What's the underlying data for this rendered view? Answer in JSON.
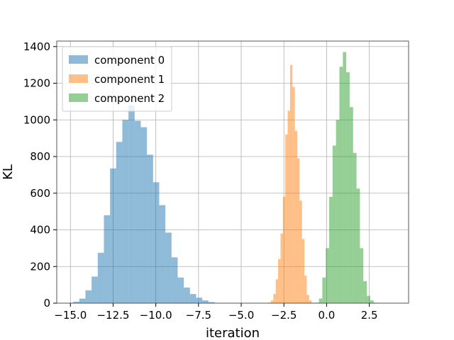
{
  "chart_data": {
    "type": "bar",
    "chart_kind": "histogram",
    "xlabel": "iteration",
    "ylabel": "KL",
    "xlim": [
      -15.8,
      4.8
    ],
    "ylim": [
      0,
      1430
    ],
    "x_ticks": [
      {
        "value": -15.0,
        "label": "−15.0"
      },
      {
        "value": -12.5,
        "label": "−12.5"
      },
      {
        "value": -10.0,
        "label": "−10.0"
      },
      {
        "value": -7.5,
        "label": "−7.5"
      },
      {
        "value": -5.0,
        "label": "−5.0"
      },
      {
        "value": -2.5,
        "label": "−2.5"
      },
      {
        "value": 0.0,
        "label": "0.0"
      },
      {
        "value": 2.5,
        "label": "2.5"
      }
    ],
    "y_ticks": [
      {
        "value": 0,
        "label": "0"
      },
      {
        "value": 200,
        "label": "200"
      },
      {
        "value": 400,
        "label": "400"
      },
      {
        "value": 600,
        "label": "600"
      },
      {
        "value": 800,
        "label": "800"
      },
      {
        "value": 1000,
        "label": "1000"
      },
      {
        "value": 1200,
        "label": "1200"
      },
      {
        "value": 1400,
        "label": "1400"
      }
    ],
    "grid": true,
    "legend_position": "top-left",
    "series": [
      {
        "name": "component 0",
        "color": "#1f77b4",
        "opacity": 0.5,
        "bin_start": -15.2,
        "bin_width": 0.36,
        "counts": [
          2,
          8,
          25,
          70,
          145,
          275,
          480,
          735,
          880,
          1000,
          1080,
          995,
          960,
          810,
          660,
          535,
          385,
          250,
          140,
          85,
          50,
          30,
          15,
          6,
          2
        ]
      },
      {
        "name": "component 1",
        "color": "#ff7f0e",
        "opacity": 0.5,
        "bin_start": -3.4,
        "bin_width": 0.14,
        "counts": [
          3,
          15,
          50,
          130,
          240,
          380,
          580,
          920,
          1050,
          1300,
          1180,
          940,
          790,
          560,
          350,
          150,
          45,
          15,
          3
        ]
      },
      {
        "name": "component 2",
        "color": "#2ca02c",
        "opacity": 0.5,
        "bin_start": -0.65,
        "bin_width": 0.2,
        "counts": [
          3,
          25,
          140,
          300,
          580,
          860,
          1000,
          1290,
          1370,
          1260,
          1070,
          820,
          625,
          300,
          120,
          40,
          15,
          3
        ]
      }
    ]
  }
}
